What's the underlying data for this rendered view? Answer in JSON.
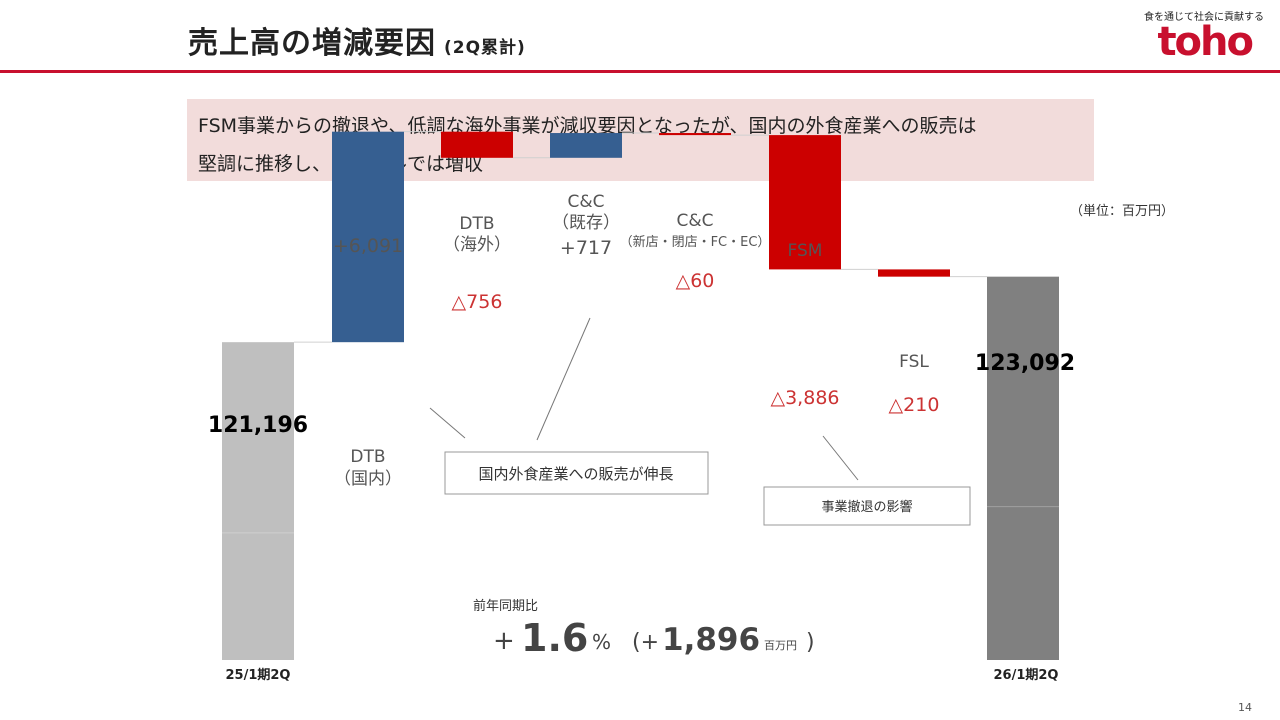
{
  "header": {
    "title": "売上高の増減要因",
    "subtitle": "(2Q累計)",
    "tagline": "食を通じて社会に貢献する",
    "logo_text": "toho"
  },
  "summary": {
    "line1": "FSM事業からの撤退や、低調な海外事業が減収要因となったが、国内の外食産業への販売は",
    "line2": "堅調に推移し、トータルでは増収"
  },
  "unit_label": "（単位：百万円）",
  "chart_data": {
    "type": "bar",
    "subtype": "waterfall",
    "ylim": [
      112000,
      124500
    ],
    "categories": [
      {
        "top": "",
        "bottom": "25/1期2Q",
        "kind": "total"
      },
      {
        "top": "",
        "bottom": "DTB\n（国内）",
        "kind": "increase"
      },
      {
        "top": "DTB\n（海外）",
        "bottom": "",
        "kind": "decrease"
      },
      {
        "top": "C&C\n（既存）",
        "bottom": "",
        "kind": "increase"
      },
      {
        "top": "C&C\n（新店・閉店・FC・EC）",
        "bottom": "",
        "kind": "decrease"
      },
      {
        "top": "FSM",
        "bottom": "",
        "kind": "decrease"
      },
      {
        "top": "FSL",
        "bottom": "",
        "kind": "decrease"
      },
      {
        "top": "",
        "bottom": "26/1期2Q",
        "kind": "total"
      }
    ],
    "values": [
      121196,
      6091,
      -756,
      717,
      -60,
      -3886,
      -210,
      123092
    ],
    "value_labels": [
      "121,196",
      "+6,091",
      "△756",
      "+717",
      "△60",
      "△3,886",
      "△210",
      "123,092"
    ],
    "colors": {
      "total_prev": "#bfbfbf",
      "total_curr": "#808080",
      "increase": "#365f91",
      "decrease": "#cc0000",
      "decrease_label": "#cc3333"
    }
  },
  "callouts": {
    "domestic": "国内外食産業への販売が伸長",
    "withdrawal": "事業撤退の影響"
  },
  "yoy": {
    "label": "前年同期比",
    "sign": "+",
    "value": "1.6",
    "pct": "%",
    "open": "(+",
    "amount": "1,896",
    "unit": "百万円",
    "close": ")"
  },
  "page_number": "14"
}
